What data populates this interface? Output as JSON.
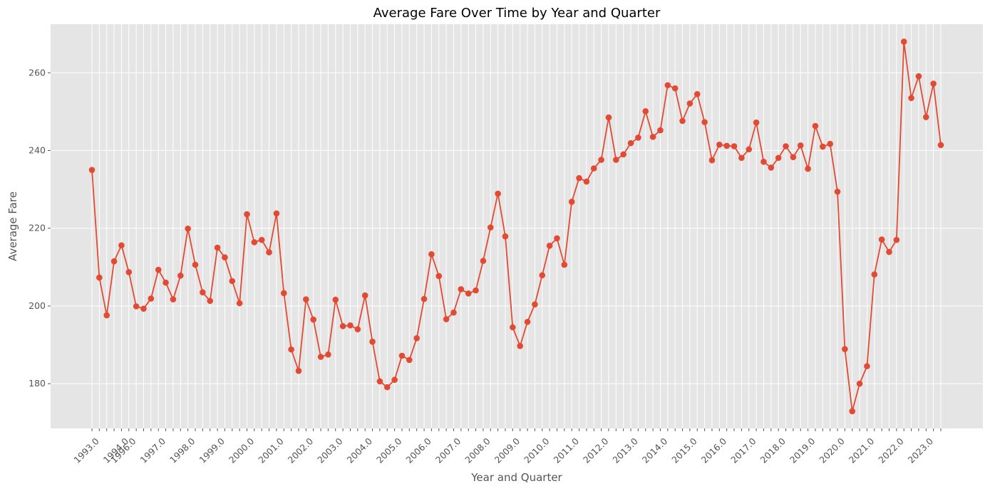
{
  "chart_data": {
    "type": "line",
    "title": "Average Fare Over Time by Year and Quarter",
    "xlabel": "Year and Quarter",
    "ylabel": "Average Fare",
    "ylim": [
      168.5,
      272.5
    ],
    "y_ticks": [
      180,
      200,
      220,
      240,
      260
    ],
    "x_tick_labels": [
      "1993.0",
      "1994.0",
      "1996.0",
      "1997.0",
      "1998.0",
      "1999.0",
      "2000.0",
      "2001.0",
      "2002.0",
      "2003.0",
      "2004.0",
      "2005.0",
      "2006.0",
      "2007.0",
      "2008.0",
      "2009.0",
      "2010.0",
      "2011.0",
      "2012.0",
      "2013.0",
      "2014.0",
      "2015.0",
      "2016.0",
      "2017.0",
      "2018.0",
      "2019.0",
      "2020.0",
      "2021.0",
      "2022.0",
      "2023.0"
    ],
    "x_tick_index": [
      0,
      4,
      5,
      9,
      13,
      17,
      21,
      25,
      29,
      33,
      37,
      41,
      45,
      49,
      53,
      57,
      61,
      65,
      69,
      73,
      77,
      81,
      85,
      89,
      93,
      97,
      101,
      105,
      109,
      113
    ],
    "grid": true,
    "color": "#e24a33",
    "series": [
      {
        "values": [
          235.0,
          207.3,
          197.6,
          211.5,
          215.6,
          208.7,
          199.9,
          199.3,
          201.9,
          209.3,
          206.0,
          201.7,
          207.8,
          219.9,
          210.6,
          203.5,
          201.3,
          215.0,
          212.5,
          206.4,
          200.7,
          223.6,
          216.4,
          217.0,
          213.8,
          223.8,
          203.3,
          188.8,
          183.3,
          201.7,
          196.5,
          186.9,
          187.5,
          201.6,
          194.8,
          195.0,
          194.0,
          202.7,
          190.8,
          180.6,
          179.1,
          181.0,
          187.2,
          186.1,
          191.7,
          201.8,
          213.3,
          207.7,
          196.6,
          198.3,
          204.3,
          203.2,
          204.0,
          211.6,
          220.2,
          228.9,
          217.9,
          194.5,
          189.7,
          195.9,
          200.4,
          207.9,
          215.5,
          217.4,
          210.6,
          226.8,
          232.9,
          232.0,
          235.4,
          237.6,
          248.5,
          237.6,
          239.0,
          241.9,
          243.3,
          250.1,
          243.5,
          245.2,
          256.8,
          256.0,
          247.6,
          252.1,
          254.5,
          247.3,
          237.5,
          241.5,
          241.2,
          241.1,
          238.1,
          240.3,
          247.2,
          237.1,
          235.6,
          238.1,
          241.1,
          238.3,
          241.3,
          235.3,
          246.3,
          241.0,
          241.7,
          229.4,
          188.9,
          172.9,
          180.0,
          184.5,
          208.1,
          217.1,
          213.9,
          217.0,
          268.0,
          253.5,
          259.1,
          248.6,
          257.2,
          241.4
        ]
      }
    ]
  }
}
